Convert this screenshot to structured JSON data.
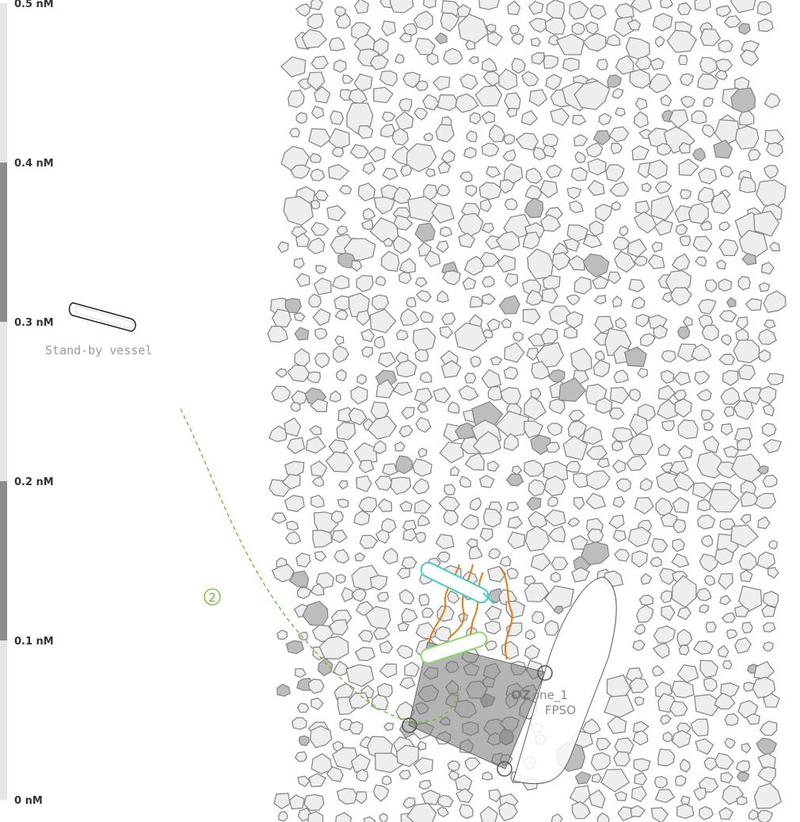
{
  "scale": {
    "ticks": [
      "0.5 nM",
      "0.4 nM",
      "0.3 nM",
      "0.2 nM",
      "0.1 nM",
      "0 nM"
    ],
    "values": [
      0.5,
      0.4,
      0.3,
      0.2,
      0.1,
      0
    ],
    "unit": "nM",
    "bar_colors": [
      "#e6e6e6",
      "#8c8c8c"
    ]
  },
  "vessel": {
    "label": "Stand-by vessel",
    "icon": "vessel-icon"
  },
  "zone": {
    "label_prefix": "OZ",
    "label_rest": "one_1",
    "asset": "FPSO",
    "color": "#7a7a7a"
  },
  "route": {
    "number": "2",
    "color": "#66bb22"
  },
  "vessels": {
    "cyan_color": "#44cccc",
    "green_color": "#88dd66"
  },
  "risers": {
    "color": "#ee7711"
  },
  "seabed": {
    "fill": "#eeeeee",
    "stroke": "#888888"
  }
}
